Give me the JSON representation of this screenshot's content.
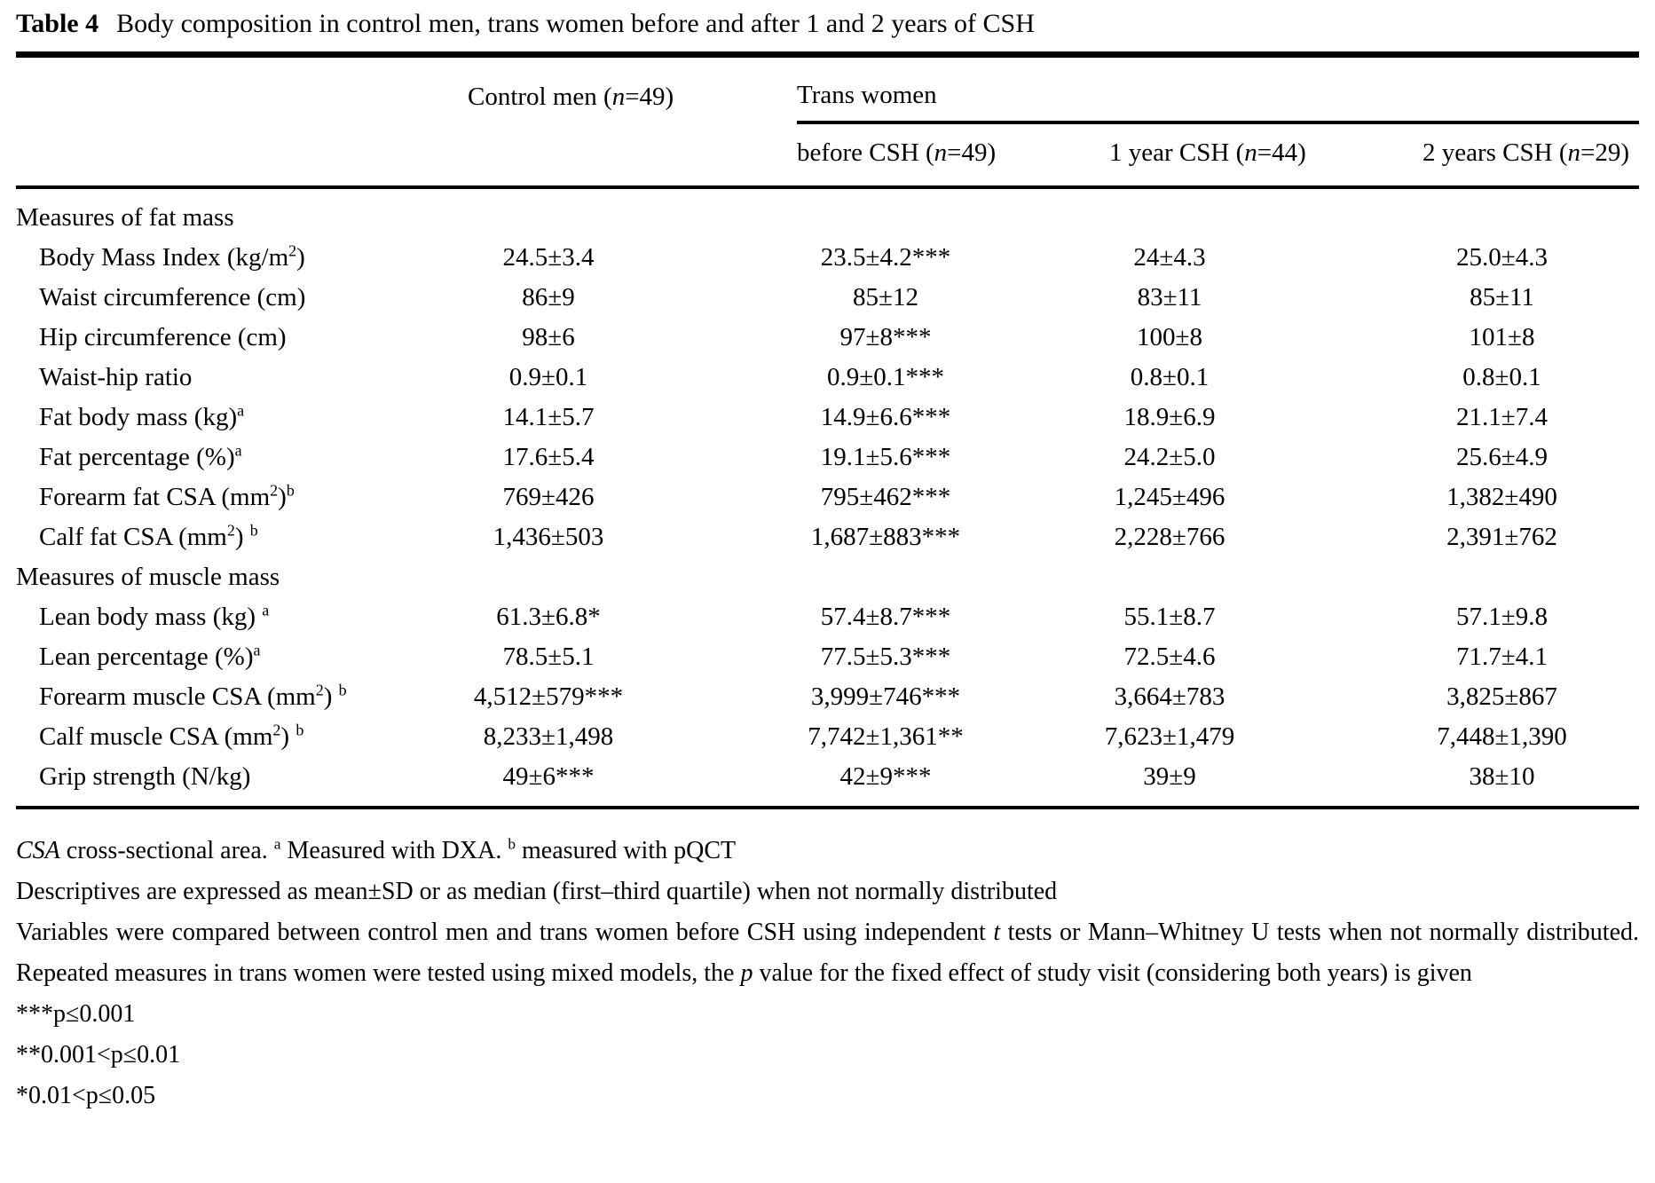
{
  "title": {
    "label": "Table 4",
    "text": "Body composition in control men, trans women before and after 1 and 2 years of CSH"
  },
  "table": {
    "col_headers": {
      "control": "Control men (~{n}=49)",
      "group": "Trans women",
      "sub": [
        "before CSH (~{n}=49)",
        "1 year CSH (~{n}=44)",
        "2 years CSH (~{n}=29)"
      ]
    },
    "rows": [
      {
        "type": "section",
        "label": "Measures of fat mass"
      },
      {
        "type": "data",
        "label": "Body Mass Index (kg/m^{2})",
        "values": [
          "24.5±3.4",
          "23.5±4.2***",
          "24±4.3",
          "25.0±4.3"
        ]
      },
      {
        "type": "data",
        "label": "Waist circumference (cm)",
        "values": [
          "86±9",
          "85±12",
          "83±11",
          "85±11"
        ]
      },
      {
        "type": "data",
        "label": "Hip circumference (cm)",
        "values": [
          "98±6",
          "97±8***",
          "100±8",
          "101±8"
        ]
      },
      {
        "type": "data",
        "label": "Waist-hip ratio",
        "values": [
          "0.9±0.1",
          "0.9±0.1***",
          "0.8±0.1",
          "0.8±0.1"
        ]
      },
      {
        "type": "data",
        "label": "Fat body mass (kg)^{a}",
        "values": [
          "14.1±5.7",
          "14.9±6.6***",
          "18.9±6.9",
          "21.1±7.4"
        ]
      },
      {
        "type": "data",
        "label": "Fat percentage (%)^{a}",
        "values": [
          "17.6±5.4",
          "19.1±5.6***",
          "24.2±5.0",
          "25.6±4.9"
        ]
      },
      {
        "type": "data",
        "label": "Forearm fat CSA (mm^{2})^{b}",
        "values": [
          "769±426",
          "795±462***",
          "1,245±496",
          "1,382±490"
        ]
      },
      {
        "type": "data",
        "label": "Calf fat CSA (mm^{2}) ^{b}",
        "values": [
          "1,436±503",
          "1,687±883***",
          "2,228±766",
          "2,391±762"
        ]
      },
      {
        "type": "section",
        "label": "Measures of muscle mass"
      },
      {
        "type": "data",
        "label": "Lean body mass (kg) ^{a}",
        "values": [
          "61.3±6.8*",
          "57.4±8.7***",
          "55.1±8.7",
          "57.1±9.8"
        ]
      },
      {
        "type": "data",
        "label": "Lean percentage (%)^{a}",
        "values": [
          "78.5±5.1",
          "77.5±5.3***",
          "72.5±4.6",
          "71.7±4.1"
        ]
      },
      {
        "type": "data",
        "label": "Forearm muscle CSA (mm^{2}) ^{b}",
        "values": [
          "4,512±579***",
          "3,999±746***",
          "3,664±783",
          "3,825±867"
        ]
      },
      {
        "type": "data",
        "label": "Calf muscle CSA (mm^{2}) ^{b}",
        "values": [
          "8,233±1,498",
          "7,742±1,361**",
          "7,623±1,479",
          "7,448±1,390"
        ]
      },
      {
        "type": "data",
        "label": "Grip strength (N/kg)",
        "values": [
          "49±6***",
          "42±9***",
          "39±9",
          "38±10"
        ]
      }
    ]
  },
  "footnotes": [
    "~{CSA} cross-sectional area. ^{a} Measured with DXA. ^{b} measured with pQCT",
    "Descriptives are expressed as mean±SD or as median (first–third quartile) when not normally distributed",
    "Variables were compared between control men and trans women before CSH using independent ~{t} tests or Mann–Whitney U tests when not normally distributed. Repeated measures in trans women were tested using mixed models, the ~{p} value for the fixed effect of study visit (considering both years) is given",
    "***p≤0.001",
    "**0.001<p≤0.01",
    "*0.01<p≤0.05"
  ]
}
